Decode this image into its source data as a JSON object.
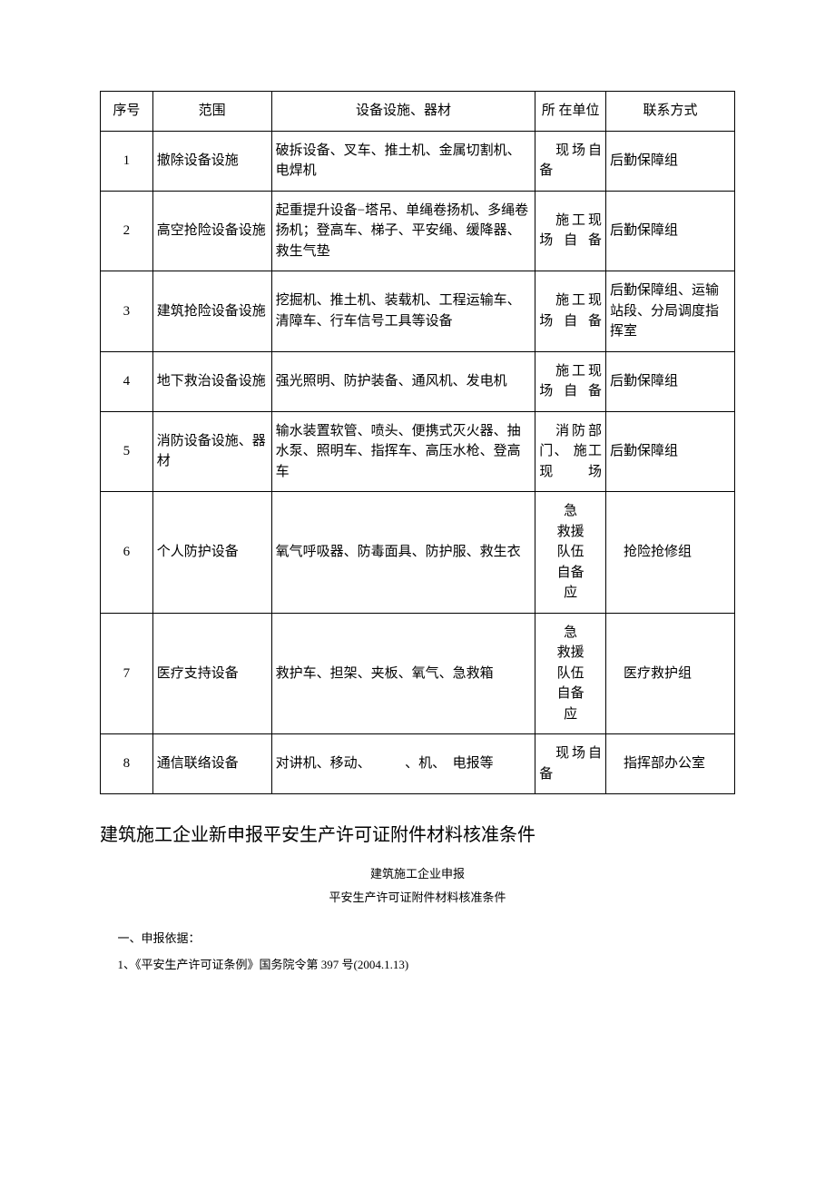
{
  "table": {
    "headers": {
      "seq": "序号",
      "scope": "范围",
      "equip": "设备设施、器材",
      "loc": "所 在单位",
      "contact": "联系方式"
    },
    "rows": [
      {
        "seq": "1",
        "scope": "撤除设备设施",
        "equip": "破拆设备、叉车、推土机、金属切割机、电焊机",
        "loc": "　现场自备",
        "contact": "后勤保障组"
      },
      {
        "seq": "2",
        "scope": "高空抢险设备设施",
        "equip": "起重提升设备−塔吊、单绳卷扬机、多绳卷扬机；登高车、梯子、平安绳、缓降器、救生气垫",
        "loc": "　施工现场自备",
        "contact": "后勤保障组"
      },
      {
        "seq": "3",
        "scope": "建筑抢险设备设施",
        "equip": "挖掘机、推土机、装载机、工程运输车、清障车、行车信号工具等设备",
        "loc": "　施工现场自备",
        "contact": "后勤保障组、运输站段、分局调度指挥室"
      },
      {
        "seq": "4",
        "scope": "地下救治设备设施",
        "equip": "强光照明、防护装备、通风机、发电机",
        "loc": "　施工现场自备",
        "contact": "后勤保障组"
      },
      {
        "seq": "5",
        "scope": "消防设备设施、器材",
        "equip": "输水装置软管、喷头、便携式灭火器、抽水泵、照明车、指挥车、高压水枪、登高车",
        "loc": "　消防部门、 施工现场",
        "contact": "后勤保障组"
      },
      {
        "seq": "6",
        "scope": "个人防护设备",
        "equip": "氧气呼吸器、防毒面具、防护服、救生衣",
        "loc": "急\n救援\n队伍\n自备\n应",
        "contact": "　抢险抢修组"
      },
      {
        "seq": "7",
        "scope": "医疗支持设备",
        "equip": "救护车、担架、夹板、氧气、急救箱",
        "loc": "急\n救援\n队伍\n自备\n应",
        "contact": "　医疗救护组"
      },
      {
        "seq": "8",
        "scope": "通信联络设备",
        "equip": "对讲机、移动、　　　、机、　电报等",
        "loc": "　现场自备",
        "contact": "　指挥部办公室"
      }
    ]
  },
  "heading1": "建筑施工企业新申报平安生产许可证附件材料核准条件",
  "sub1": "建筑施工企业申报",
  "sub2": "平安生产许可证附件材料核准条件",
  "section1_title": "一、申报依据：",
  "section1_item1": "1、《平安生产许可证条例》国务院令第 397 号(2004.1.13)"
}
